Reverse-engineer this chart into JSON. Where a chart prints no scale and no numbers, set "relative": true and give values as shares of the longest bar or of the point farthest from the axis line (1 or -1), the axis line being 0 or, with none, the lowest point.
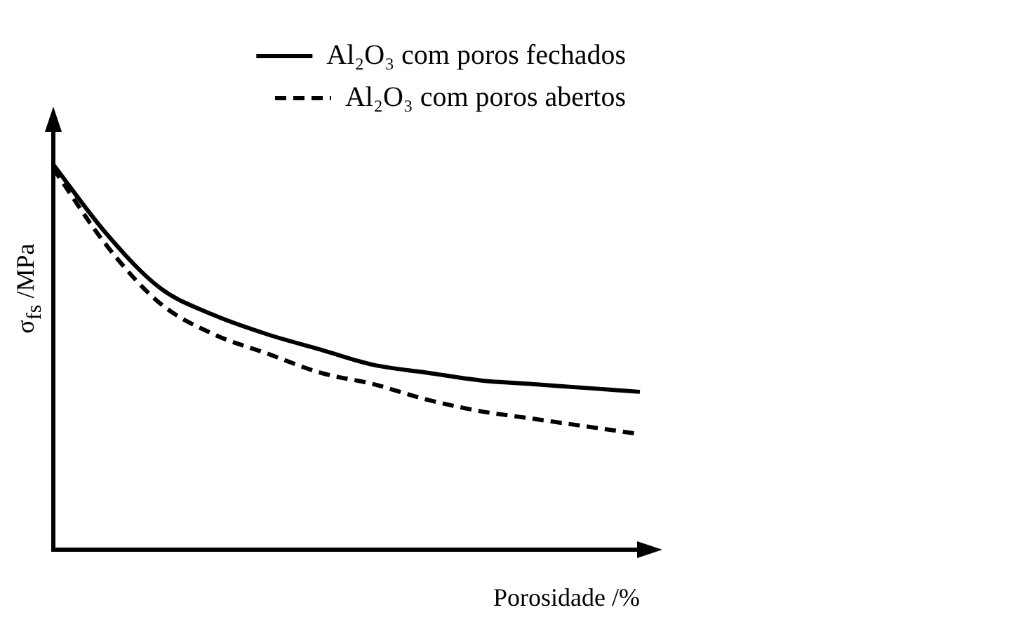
{
  "chart_data": {
    "type": "line",
    "relative": true,
    "xlabel": "Porosidade /%",
    "ylabel": "σ$_{fs}$ /MPa",
    "legend": "top right",
    "grid": false,
    "marker": "none",
    "categories": [
      null,
      null,
      null,
      null,
      null,
      null,
      null,
      null,
      null,
      null,
      null,
      null
    ],
    "series": [
      {
        "name": "Al₂O₃ com poros fechados",
        "color": "#000000",
        "line_style": "solid",
        "values": [
          1,
          0.82,
          0.68,
          0.61,
          0.56,
          0.52,
          0.48,
          0.46,
          0.44,
          0.43,
          0.42,
          0.41
        ]
      },
      {
        "name": "Al₂O₃ com poros abertos",
        "color": "#000000",
        "line_style": "dashed",
        "values": [
          0.99,
          0.79,
          0.64,
          0.56,
          0.51,
          0.46,
          0.43,
          0.39,
          0.36,
          0.34,
          0.32,
          0.3
        ]
      }
    ]
  }
}
